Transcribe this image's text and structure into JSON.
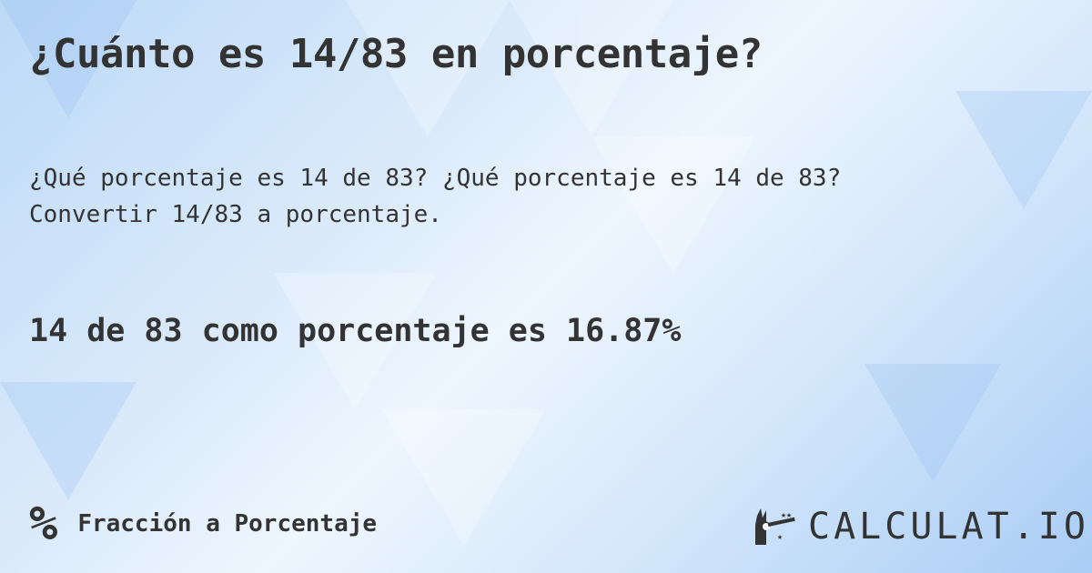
{
  "header": {
    "title": "¿Cuánto es 14/83 en porcentaje?"
  },
  "description": {
    "line1": "¿Qué porcentaje es 14 de 83? ¿Qué porcentaje es 14 de 83?",
    "line2": "Convertir 14/83 a porcentaje."
  },
  "result": {
    "text": "14 de 83 como porcentaje es 16.87%"
  },
  "footer": {
    "category_icon": "percent-icon",
    "category_label": "Fracción a Porcentaje",
    "logo_text": "CALCULAT.IO"
  },
  "colors": {
    "text": "#333333",
    "background": "#cfe4fa"
  }
}
